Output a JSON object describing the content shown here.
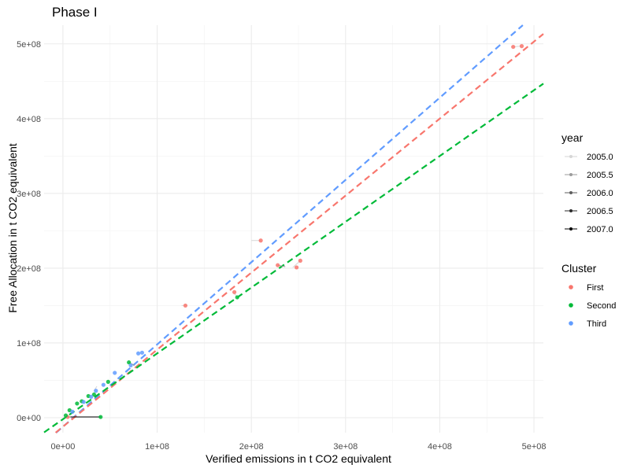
{
  "chart_data": {
    "type": "scatter",
    "title": "Phase I",
    "xlabel": "Verified emissions in t CO2 equivalent",
    "ylabel": "Free Allocation in t CO2 equivalent",
    "xlim": [
      -20000000,
      510000000
    ],
    "ylim": [
      -20000000,
      525000000
    ],
    "x_ticks": [
      {
        "value": 0,
        "label": "0e+00"
      },
      {
        "value": 100000000,
        "label": "1e+08"
      },
      {
        "value": 200000000,
        "label": "2e+08"
      },
      {
        "value": 300000000,
        "label": "3e+08"
      },
      {
        "value": 400000000,
        "label": "4e+08"
      },
      {
        "value": 500000000,
        "label": "5e+08"
      }
    ],
    "y_ticks": [
      {
        "value": 0,
        "label": "0e+00"
      },
      {
        "value": 100000000,
        "label": "1e+08"
      },
      {
        "value": 200000000,
        "label": "2e+08"
      },
      {
        "value": 300000000,
        "label": "3e+08"
      },
      {
        "value": 400000000,
        "label": "4e+08"
      },
      {
        "value": 500000000,
        "label": "5e+08"
      }
    ],
    "grid": true,
    "legend_position": "right",
    "legend_year": {
      "title": "year",
      "entries": [
        {
          "label": "2005.0",
          "color": "#d6d6d6"
        },
        {
          "label": "2005.5",
          "color": "#9b9b9b"
        },
        {
          "label": "2006.0",
          "color": "#5e5e5e"
        },
        {
          "label": "2006.5",
          "color": "#2a2a2a"
        },
        {
          "label": "2007.0",
          "color": "#000000"
        }
      ]
    },
    "legend_cluster": {
      "title": "Cluster",
      "entries": [
        {
          "label": "First",
          "color": "#F8766D"
        },
        {
          "label": "Second",
          "color": "#00BA38"
        },
        {
          "label": "Third",
          "color": "#619CFF"
        }
      ]
    },
    "fit_lines": [
      {
        "cluster": "Third",
        "color": "#619CFF",
        "slope": 1.1,
        "intercept": -12000000
      },
      {
        "cluster": "First",
        "color": "#F8766D",
        "slope": 1.03,
        "intercept": -12000000
      },
      {
        "cluster": "Second",
        "color": "#00BA38",
        "slope": 0.88,
        "intercept": -2000000
      }
    ],
    "series": [
      {
        "cluster": "First",
        "color": "#F8766D",
        "points": [
          [
            130000000,
            150000000
          ],
          [
            210000000,
            237000000
          ],
          [
            228000000,
            204000000
          ],
          [
            248000000,
            201000000
          ],
          [
            252000000,
            210000000
          ],
          [
            182000000,
            168000000
          ],
          [
            478000000,
            496000000
          ],
          [
            487000000,
            497000000
          ],
          [
            5000000,
            1000000
          ]
        ]
      },
      {
        "cluster": "Second",
        "color": "#00BA38",
        "points": [
          [
            40000000,
            1000000
          ],
          [
            3000000,
            3000000
          ],
          [
            7000000,
            10000000
          ],
          [
            15000000,
            19000000
          ],
          [
            20000000,
            22000000
          ],
          [
            27000000,
            29000000
          ],
          [
            33000000,
            31000000
          ],
          [
            48000000,
            48000000
          ],
          [
            70000000,
            74000000
          ],
          [
            185000000,
            161000000
          ]
        ]
      },
      {
        "cluster": "Third",
        "color": "#619CFF",
        "points": [
          [
            10000000,
            8000000
          ],
          [
            22000000,
            21000000
          ],
          [
            30000000,
            28000000
          ],
          [
            35000000,
            36000000
          ],
          [
            43000000,
            44000000
          ],
          [
            55000000,
            60000000
          ],
          [
            72000000,
            70000000
          ],
          [
            80000000,
            86000000
          ],
          [
            84000000,
            87000000
          ]
        ]
      }
    ],
    "segments": [
      {
        "from": [
          7000000,
          1000000
        ],
        "to": [
          40000000,
          1000000
        ],
        "color": "#000000"
      },
      {
        "from": [
          200000000,
          237000000
        ],
        "to": [
          210000000,
          237000000
        ],
        "color": "#d6d6d6"
      },
      {
        "from": [
          126000000,
          150000000
        ],
        "to": [
          132000000,
          150000000
        ],
        "color": "#d6d6d6"
      },
      {
        "from": [
          244000000,
          201000000
        ],
        "to": [
          252000000,
          210000000
        ],
        "color": "#d6d6d6"
      },
      {
        "from": [
          180000000,
          168000000
        ],
        "to": [
          186000000,
          161000000
        ],
        "color": "#d6d6d6"
      },
      {
        "from": [
          476000000,
          496000000
        ],
        "to": [
          487000000,
          497000000
        ],
        "color": "#d6d6d6"
      },
      {
        "from": [
          228000000,
          204000000
        ],
        "to": [
          236000000,
          202000000
        ],
        "color": "#9b9b9b"
      },
      {
        "from": [
          2000000,
          1000000
        ],
        "to": [
          8000000,
          1000000
        ],
        "color": "#9b9b9b"
      },
      {
        "from": [
          33000000,
          36000000
        ],
        "to": [
          36000000,
          42000000
        ],
        "color": "#d6d6d6"
      },
      {
        "from": [
          70000000,
          74000000
        ],
        "to": [
          76000000,
          70000000
        ],
        "color": "#9b9b9b"
      }
    ]
  }
}
